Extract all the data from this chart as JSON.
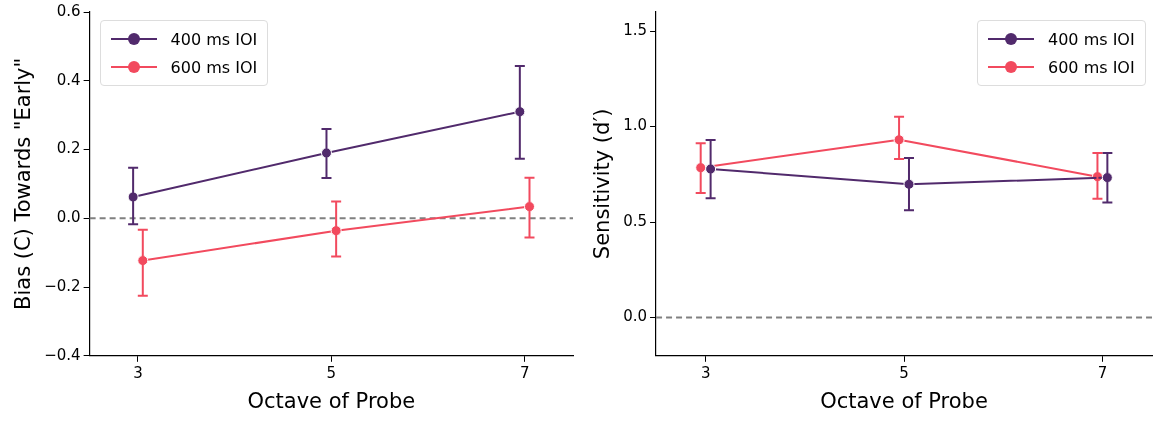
{
  "chart_data": [
    {
      "type": "line",
      "xlabel": "Octave of Probe",
      "ylabel": "Bias (C) Towards \"Early\"",
      "xlim": [
        2.5,
        7.5
      ],
      "xticks": [
        3,
        5,
        7
      ],
      "ylim": [
        -0.4,
        0.6
      ],
      "yticks": [
        {
          "value": -0.4,
          "label": "−0.4"
        },
        {
          "value": -0.2,
          "label": "−0.2"
        },
        {
          "value": 0,
          "label": "0.0"
        },
        {
          "value": 0.2,
          "label": "0.2"
        },
        {
          "value": 0.4,
          "label": "0.4"
        },
        {
          "value": 0.6,
          "label": "0.6"
        }
      ],
      "grid": false,
      "legend": "top left",
      "marker": "circle",
      "line_style": "solid",
      "ref_lines": [
        {
          "axis": "y",
          "value": 0,
          "color": "#808080",
          "line_style": "dashed"
        }
      ],
      "series": [
        {
          "name": "400 ms IOI",
          "color": "#512a6c",
          "x": [
            2.95,
            4.95,
            6.95
          ],
          "values": [
            0.062,
            0.19,
            0.31
          ],
          "errors": [
            [
              -0.017,
              0.147
            ],
            [
              0.117,
              0.26
            ],
            [
              0.173,
              0.443
            ]
          ]
        },
        {
          "name": "600 ms IOI",
          "color": "#f24a5e",
          "x": [
            3.05,
            5.05,
            7.05
          ],
          "values": [
            -0.123,
            -0.036,
            0.034
          ],
          "errors": [
            [
              -0.225,
              -0.033
            ],
            [
              -0.111,
              0.049
            ],
            [
              -0.056,
              0.118
            ]
          ]
        }
      ]
    },
    {
      "type": "line",
      "xlabel": "Octave of Probe",
      "ylabel": "Sensitivity (d′)",
      "xlim": [
        2.5,
        7.5
      ],
      "xticks": [
        3,
        5,
        7
      ],
      "ylim": [
        -0.2,
        1.6
      ],
      "yticks": [
        {
          "value": 0,
          "label": "0.0"
        },
        {
          "value": 0.5,
          "label": "0.5"
        },
        {
          "value": 1,
          "label": "1.0"
        },
        {
          "value": 1.5,
          "label": "1.5"
        }
      ],
      "grid": false,
      "legend": "top right",
      "marker": "circle",
      "line_style": "solid",
      "ref_lines": [
        {
          "axis": "y",
          "value": 0,
          "color": "#808080",
          "line_style": "dashed"
        }
      ],
      "series": [
        {
          "name": "400 ms IOI",
          "color": "#512a6c",
          "x": [
            3.05,
            5.05,
            7.05
          ],
          "values": [
            0.778,
            0.698,
            0.733
          ],
          "errors": [
            [
              0.625,
              0.93
            ],
            [
              0.562,
              0.835
            ],
            [
              0.603,
              0.862
            ]
          ]
        },
        {
          "name": "600 ms IOI",
          "color": "#f24a5e",
          "x": [
            2.95,
            4.95,
            6.95
          ],
          "values": [
            0.785,
            0.931,
            0.738
          ],
          "errors": [
            [
              0.653,
              0.913
            ],
            [
              0.83,
              1.051
            ],
            [
              0.622,
              0.862
            ]
          ]
        }
      ]
    }
  ]
}
